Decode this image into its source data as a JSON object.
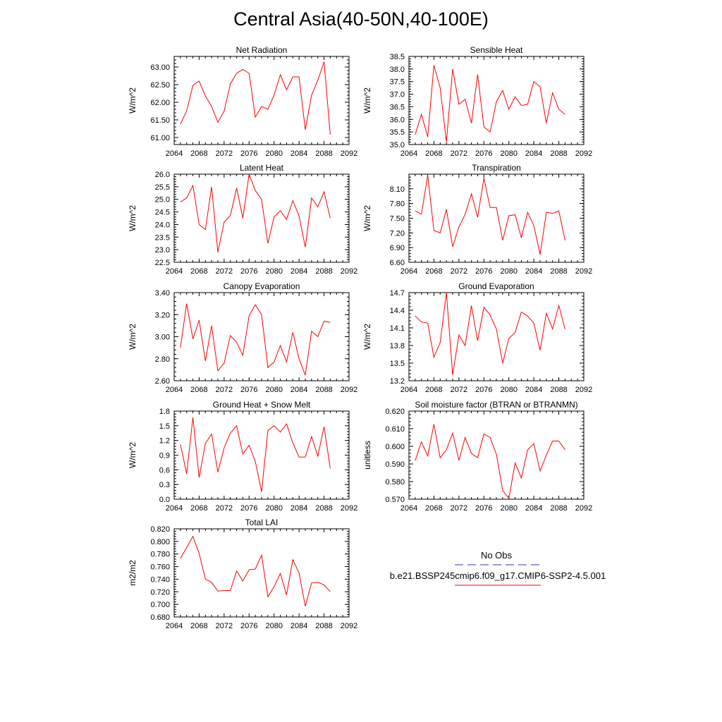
{
  "page_title": "Central Asia(40-50N,40-100E)",
  "legend": {
    "obs_label": "No Obs",
    "obs_color": "#3333aa",
    "model_label": "b.e21.BSSP245cmip6.f09_g17.CMIP6-SSP2-4.5.001",
    "model_color": "#ff0000"
  },
  "chart_data": [
    {
      "type": "line",
      "title": "Net Radiation",
      "ylabel": "W/m^2",
      "xlim": [
        2064,
        2092
      ],
      "xticks": [
        "2064",
        "2068",
        "2072",
        "2076",
        "2080",
        "2084",
        "2088",
        "2092"
      ],
      "ylim": [
        60.8,
        63.3
      ],
      "yticks": [
        "61.00",
        "61.50",
        "62.00",
        "62.50",
        "63.00"
      ],
      "ytick_values": [
        61.0,
        61.5,
        62.0,
        62.5,
        63.0
      ],
      "x": [
        2065,
        2066,
        2067,
        2068,
        2069,
        2070,
        2071,
        2072,
        2073,
        2074,
        2075,
        2076,
        2077,
        2078,
        2079,
        2080,
        2081,
        2082,
        2083,
        2084,
        2085,
        2086,
        2087,
        2088,
        2089
      ],
      "values": [
        61.38,
        61.75,
        62.48,
        62.6,
        62.18,
        61.88,
        61.43,
        61.75,
        62.52,
        62.82,
        62.93,
        62.82,
        61.58,
        61.88,
        61.8,
        62.2,
        62.78,
        62.35,
        62.72,
        62.72,
        61.22,
        62.2,
        62.62,
        63.15,
        61.08
      ]
    },
    {
      "type": "line",
      "title": "Sensible Heat",
      "ylabel": "W/m^2",
      "xlim": [
        2064,
        2092
      ],
      "xticks": [
        "2064",
        "2068",
        "2072",
        "2076",
        "2080",
        "2084",
        "2088",
        "2092"
      ],
      "ylim": [
        35.0,
        38.5
      ],
      "yticks": [
        "35.0",
        "35.5",
        "36.0",
        "36.5",
        "37.0",
        "37.5",
        "38.0",
        "38.5"
      ],
      "ytick_values": [
        35.0,
        35.5,
        36.0,
        36.5,
        37.0,
        37.5,
        38.0,
        38.5
      ],
      "x": [
        2065,
        2066,
        2067,
        2068,
        2069,
        2070,
        2071,
        2072,
        2073,
        2074,
        2075,
        2076,
        2077,
        2078,
        2079,
        2080,
        2081,
        2082,
        2083,
        2084,
        2085,
        2086,
        2087,
        2088,
        2089
      ],
      "values": [
        35.4,
        36.2,
        35.3,
        38.15,
        37.25,
        35.1,
        38.0,
        36.6,
        36.8,
        35.85,
        37.78,
        35.7,
        35.5,
        36.7,
        37.15,
        36.4,
        36.9,
        36.55,
        36.6,
        37.5,
        37.3,
        35.85,
        37.05,
        36.4,
        36.2
      ]
    },
    {
      "type": "line",
      "title": "Latent Heat",
      "ylabel": "W/m^2",
      "xlim": [
        2064,
        2092
      ],
      "xticks": [
        "2064",
        "2068",
        "2072",
        "2076",
        "2080",
        "2084",
        "2088",
        "2092"
      ],
      "ylim": [
        22.5,
        26.0
      ],
      "yticks": [
        "22.5",
        "23.0",
        "23.5",
        "24.0",
        "24.5",
        "25.0",
        "25.5",
        "26.0"
      ],
      "ytick_values": [
        22.5,
        23.0,
        23.5,
        24.0,
        24.5,
        25.0,
        25.5,
        26.0
      ],
      "x": [
        2065,
        2066,
        2067,
        2068,
        2069,
        2070,
        2071,
        2072,
        2073,
        2074,
        2075,
        2076,
        2077,
        2078,
        2079,
        2080,
        2081,
        2082,
        2083,
        2084,
        2085,
        2086,
        2087,
        2088,
        2089
      ],
      "values": [
        24.9,
        25.05,
        25.55,
        24.0,
        23.8,
        25.5,
        22.9,
        24.1,
        24.35,
        25.45,
        24.25,
        26.0,
        25.35,
        25.0,
        23.25,
        24.3,
        24.55,
        24.2,
        24.95,
        24.35,
        23.1,
        25.05,
        24.7,
        25.3,
        24.25
      ]
    },
    {
      "type": "line",
      "title": "Transpiration",
      "ylabel": "W/m^2",
      "xlim": [
        2064,
        2092
      ],
      "xticks": [
        "2064",
        "2068",
        "2072",
        "2076",
        "2080",
        "2084",
        "2088",
        "2092"
      ],
      "ylim": [
        6.6,
        8.4
      ],
      "yticks": [
        "6.60",
        "6.90",
        "7.20",
        "7.50",
        "7.80",
        "8.10"
      ],
      "ytick_values": [
        6.6,
        6.9,
        7.2,
        7.5,
        7.8,
        8.1
      ],
      "x": [
        2065,
        2066,
        2067,
        2068,
        2069,
        2070,
        2071,
        2072,
        2073,
        2074,
        2075,
        2076,
        2077,
        2078,
        2079,
        2080,
        2081,
        2082,
        2083,
        2084,
        2085,
        2086,
        2087,
        2088,
        2089
      ],
      "values": [
        7.65,
        7.58,
        8.38,
        7.25,
        7.2,
        7.68,
        6.92,
        7.32,
        7.58,
        8.0,
        7.52,
        8.32,
        7.72,
        7.72,
        7.05,
        7.55,
        7.57,
        7.1,
        7.62,
        7.35,
        6.76,
        7.62,
        7.6,
        7.65,
        7.05
      ]
    },
    {
      "type": "line",
      "title": "Canopy Evaporation",
      "ylabel": "W/m^2",
      "xlim": [
        2064,
        2092
      ],
      "xticks": [
        "2064",
        "2068",
        "2072",
        "2076",
        "2080",
        "2084",
        "2088",
        "2092"
      ],
      "ylim": [
        2.6,
        3.4
      ],
      "yticks": [
        "2.60",
        "2.80",
        "3.00",
        "3.20",
        "3.40"
      ],
      "ytick_values": [
        2.6,
        2.8,
        3.0,
        3.2,
        3.4
      ],
      "x": [
        2065,
        2066,
        2067,
        2068,
        2069,
        2070,
        2071,
        2072,
        2073,
        2074,
        2075,
        2076,
        2077,
        2078,
        2079,
        2080,
        2081,
        2082,
        2083,
        2084,
        2085,
        2086,
        2087,
        2088,
        2089
      ],
      "values": [
        2.9,
        3.3,
        2.98,
        3.15,
        2.78,
        3.1,
        2.69,
        2.76,
        3.01,
        2.95,
        2.83,
        3.19,
        3.29,
        3.2,
        2.72,
        2.77,
        2.92,
        2.77,
        3.04,
        2.8,
        2.65,
        3.05,
        3.0,
        3.14,
        3.13
      ]
    },
    {
      "type": "line",
      "title": "Ground Evaporation",
      "ylabel": "W/m^2",
      "xlim": [
        2064,
        2092
      ],
      "xticks": [
        "2064",
        "2068",
        "2072",
        "2076",
        "2080",
        "2084",
        "2088",
        "2092"
      ],
      "ylim": [
        13.2,
        14.7
      ],
      "yticks": [
        "13.2",
        "13.5",
        "13.8",
        "14.1",
        "14.4",
        "14.7"
      ],
      "ytick_values": [
        13.2,
        13.5,
        13.8,
        14.1,
        14.4,
        14.7
      ],
      "x": [
        2065,
        2066,
        2067,
        2068,
        2069,
        2070,
        2071,
        2072,
        2073,
        2074,
        2075,
        2076,
        2077,
        2078,
        2079,
        2080,
        2081,
        2082,
        2083,
        2084,
        2085,
        2086,
        2087,
        2088,
        2089
      ],
      "values": [
        14.3,
        14.2,
        14.18,
        13.6,
        13.85,
        14.7,
        13.3,
        13.98,
        13.8,
        14.48,
        13.88,
        14.45,
        14.32,
        14.08,
        13.5,
        13.92,
        14.02,
        14.37,
        14.3,
        14.18,
        13.72,
        14.35,
        14.08,
        14.48,
        14.08
      ]
    },
    {
      "type": "line",
      "title": "Ground Heat + Snow Melt",
      "ylabel": "W/m^2",
      "xlim": [
        2064,
        2092
      ],
      "xticks": [
        "2064",
        "2068",
        "2072",
        "2076",
        "2080",
        "2084",
        "2088",
        "2092"
      ],
      "ylim": [
        0.0,
        1.8
      ],
      "yticks": [
        "0.0",
        "0.3",
        "0.6",
        "0.9",
        "1.2",
        "1.5",
        "1.8"
      ],
      "ytick_values": [
        0.0,
        0.3,
        0.6,
        0.9,
        1.2,
        1.5,
        1.8
      ],
      "x": [
        2065,
        2066,
        2067,
        2068,
        2069,
        2070,
        2071,
        2072,
        2073,
        2074,
        2075,
        2076,
        2077,
        2078,
        2079,
        2080,
        2081,
        2082,
        2083,
        2084,
        2085,
        2086,
        2087,
        2088,
        2089
      ],
      "values": [
        1.12,
        0.52,
        1.67,
        0.44,
        1.14,
        1.33,
        0.55,
        1.05,
        1.35,
        1.5,
        0.92,
        1.1,
        0.77,
        0.15,
        1.4,
        1.5,
        1.37,
        1.54,
        1.15,
        0.86,
        0.86,
        1.28,
        0.88,
        1.48,
        0.63
      ]
    },
    {
      "type": "line",
      "title": "Soil moisture factor (BTRAN or BTRANMN)",
      "ylabel": "unitless",
      "xlim": [
        2064,
        2092
      ],
      "xticks": [
        "2064",
        "2068",
        "2072",
        "2076",
        "2080",
        "2084",
        "2088",
        "2092"
      ],
      "ylim": [
        0.57,
        0.62
      ],
      "yticks": [
        "0.570",
        "0.580",
        "0.590",
        "0.600",
        "0.610",
        "0.620"
      ],
      "ytick_values": [
        0.57,
        0.58,
        0.59,
        0.6,
        0.61,
        0.62
      ],
      "x": [
        2065,
        2066,
        2067,
        2068,
        2069,
        2070,
        2071,
        2072,
        2073,
        2074,
        2075,
        2076,
        2077,
        2078,
        2079,
        2080,
        2081,
        2082,
        2083,
        2084,
        2085,
        2086,
        2087,
        2088,
        2089
      ],
      "values": [
        0.592,
        0.6025,
        0.5945,
        0.6125,
        0.5935,
        0.598,
        0.6075,
        0.592,
        0.605,
        0.596,
        0.5935,
        0.607,
        0.605,
        0.5955,
        0.575,
        0.5705,
        0.5905,
        0.582,
        0.598,
        0.6015,
        0.586,
        0.595,
        0.603,
        0.603,
        0.598
      ]
    },
    {
      "type": "line",
      "title": "Total LAI",
      "ylabel": "m2/m2",
      "xlim": [
        2064,
        2092
      ],
      "xticks": [
        "2064",
        "2068",
        "2072",
        "2076",
        "2080",
        "2084",
        "2088",
        "2092"
      ],
      "ylim": [
        0.68,
        0.82
      ],
      "yticks": [
        "0.680",
        "0.700",
        "0.720",
        "0.740",
        "0.760",
        "0.780",
        "0.800",
        "0.820"
      ],
      "ytick_values": [
        0.68,
        0.7,
        0.72,
        0.74,
        0.76,
        0.78,
        0.8,
        0.82
      ],
      "x": [
        2065,
        2066,
        2067,
        2068,
        2069,
        2070,
        2071,
        2072,
        2073,
        2074,
        2075,
        2076,
        2077,
        2078,
        2079,
        2080,
        2081,
        2082,
        2083,
        2084,
        2085,
        2086,
        2087,
        2088,
        2089
      ],
      "values": [
        0.773,
        0.79,
        0.808,
        0.781,
        0.74,
        0.735,
        0.721,
        0.722,
        0.722,
        0.753,
        0.737,
        0.755,
        0.756,
        0.778,
        0.712,
        0.728,
        0.749,
        0.715,
        0.771,
        0.75,
        0.697,
        0.734,
        0.735,
        0.731,
        0.72
      ]
    }
  ]
}
